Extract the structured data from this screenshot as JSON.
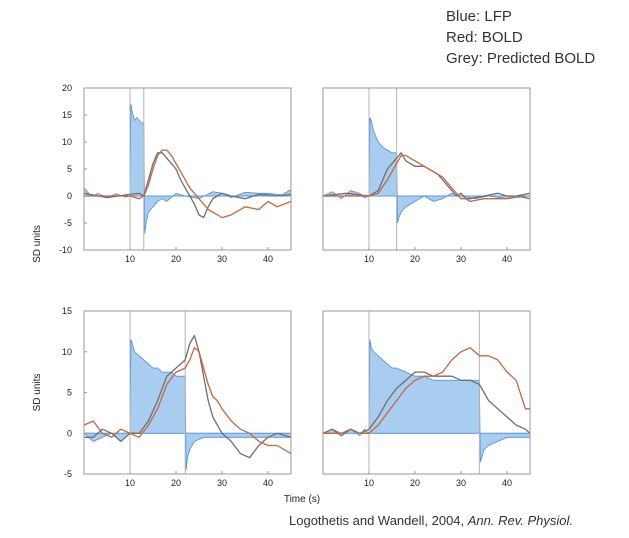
{
  "legend": {
    "blue": "Blue: LFP",
    "red": "Red: BOLD",
    "grey": "Grey: Predicted BOLD"
  },
  "citation": {
    "authors": "Logothetis and Wandell, 2004, ",
    "journal": "Ann. Rev. Physiol."
  },
  "colors": {
    "lfp_fill": "#a9cdf0",
    "lfp_line": "#4a90d9",
    "bold": "#c8663a",
    "predicted": "#6f6f6f",
    "frame": "#9a9a9a",
    "marker": "#b4b4b4"
  },
  "chart_data": [
    {
      "type": "area",
      "panel": "top-left",
      "xlabel": "",
      "ylabel": "SD units",
      "xlim": [
        0,
        45
      ],
      "ylim": [
        -10,
        20
      ],
      "xticks": [
        10,
        20,
        30,
        40
      ],
      "yticks": [
        -10,
        -5,
        0,
        5,
        10,
        15,
        20
      ],
      "stimulus": [
        10,
        13
      ],
      "series": [
        {
          "key": "lfp",
          "x": [
            0,
            1,
            2,
            3,
            5,
            7,
            9,
            10,
            10.2,
            10.5,
            11,
            11.5,
            12,
            12.5,
            13,
            13.2,
            13.5,
            14,
            15,
            16,
            17,
            18,
            20,
            22,
            25,
            28,
            30,
            32,
            35,
            38,
            40,
            43,
            45
          ],
          "values": [
            1.5,
            0.5,
            0,
            0.5,
            -0.3,
            0.4,
            -0.2,
            0,
            17,
            15.5,
            14,
            14.5,
            14,
            13.5,
            13.5,
            -7,
            -5,
            -3,
            -2,
            -1,
            -0.5,
            -1,
            0.5,
            0,
            -0.5,
            0.8,
            0.5,
            -0.3,
            0.7,
            0.5,
            0.5,
            0.2,
            1.2
          ]
        },
        {
          "key": "bold",
          "x": [
            0,
            5,
            10,
            12,
            13,
            14,
            15,
            16,
            17,
            18,
            19,
            20,
            21,
            22,
            23,
            24,
            25,
            26,
            27,
            28,
            30,
            32,
            35,
            38,
            40,
            42,
            45
          ],
          "values": [
            0,
            0,
            0,
            -0.5,
            0,
            2,
            5,
            7.5,
            8.5,
            8.5,
            7.5,
            6,
            4.5,
            3,
            1.5,
            0.5,
            -0.5,
            -1.5,
            -2.5,
            -3,
            -4,
            -3.5,
            -2,
            -2.5,
            -1,
            -2,
            -1
          ]
        },
        {
          "key": "predicted",
          "x": [
            0,
            5,
            10,
            12,
            13,
            14,
            15,
            16,
            17,
            18,
            19,
            20,
            21,
            22,
            23,
            24,
            25,
            26,
            27,
            28,
            30,
            32,
            35,
            38,
            40,
            42,
            45
          ],
          "values": [
            0.5,
            -0.3,
            0.3,
            0.5,
            0,
            3,
            6,
            8,
            8,
            7,
            6,
            5,
            3,
            1.5,
            0,
            -1.5,
            -3.5,
            -4,
            -2,
            -0.5,
            0.5,
            0,
            -0.5,
            0.3,
            0.2,
            0,
            0.3
          ]
        }
      ]
    },
    {
      "type": "area",
      "panel": "top-right",
      "xlabel": "",
      "ylabel": "",
      "xlim": [
        0,
        45
      ],
      "ylim": [
        -10,
        20
      ],
      "xticks": [
        10,
        20,
        30,
        40
      ],
      "yticks": [],
      "stimulus": [
        10,
        16
      ],
      "series": [
        {
          "key": "lfp",
          "x": [
            0,
            2,
            4,
            6,
            8,
            9,
            10,
            10.2,
            10.5,
            11,
            12,
            13,
            14,
            15,
            16,
            16.2,
            16.5,
            17,
            18,
            19,
            20,
            21,
            22,
            24,
            26,
            28,
            30,
            33,
            36,
            40,
            45
          ],
          "values": [
            0,
            0.8,
            -0.5,
            1,
            0.5,
            -0.3,
            0,
            14.5,
            14,
            12,
            10,
            9,
            8.5,
            8,
            8,
            -5,
            -4,
            -3,
            -2,
            -1.5,
            -1,
            -0.5,
            0,
            -1,
            -0.5,
            0.5,
            0,
            -0.5,
            0,
            -0.5,
            0
          ]
        },
        {
          "key": "bold",
          "x": [
            0,
            5,
            10,
            12,
            14,
            16,
            17,
            18,
            19,
            20,
            21,
            22,
            23,
            24,
            25,
            26,
            27,
            28,
            29,
            30,
            31,
            32,
            35,
            38,
            40,
            42,
            45
          ],
          "values": [
            0,
            0,
            0,
            0.5,
            3,
            6,
            7.5,
            7.5,
            7,
            6.5,
            6,
            5.5,
            5,
            4.5,
            4,
            3.5,
            2.5,
            1.5,
            0.5,
            -0.5,
            -0.5,
            -1,
            -0.5,
            -0.5,
            -0.5,
            0,
            -0.5
          ]
        },
        {
          "key": "predicted",
          "x": [
            0,
            5,
            10,
            12,
            14,
            16,
            17,
            18,
            19,
            20,
            21,
            22,
            23,
            24,
            25,
            26,
            27,
            28,
            29,
            30,
            31,
            32,
            35,
            38,
            40,
            42,
            45
          ],
          "values": [
            0,
            0.5,
            0,
            1,
            5,
            7,
            8,
            6.5,
            6,
            5.5,
            5.5,
            5.5,
            5,
            4.5,
            4,
            3,
            2,
            1,
            0,
            0.5,
            -0.5,
            -0.5,
            0,
            0.5,
            0,
            0,
            0.5
          ]
        }
      ]
    },
    {
      "type": "area",
      "panel": "bottom-left",
      "xlabel": "",
      "ylabel": "SD units",
      "xlim": [
        0,
        45
      ],
      "ylim": [
        -5,
        15
      ],
      "xticks": [
        10,
        20,
        30,
        40
      ],
      "yticks": [
        -5,
        0,
        5,
        10,
        15
      ],
      "stimulus": [
        10,
        22
      ],
      "series": [
        {
          "key": "lfp",
          "x": [
            0,
            2,
            4,
            6,
            8,
            9,
            10,
            10.2,
            10.5,
            11,
            12,
            13,
            14,
            15,
            16,
            17,
            18,
            19,
            20,
            21,
            22,
            22.2,
            22.5,
            23,
            24,
            26,
            28,
            30,
            33,
            36,
            40,
            45
          ],
          "values": [
            0,
            -1,
            -0.5,
            0,
            -1,
            -0.5,
            0,
            11.5,
            11,
            10,
            9.5,
            9,
            8.5,
            8,
            8,
            7.5,
            7.5,
            7.5,
            7,
            7,
            7,
            -4.5,
            -3,
            -2,
            -1,
            -0.5,
            -0.5,
            -0.5,
            -0.5,
            -0.5,
            -0.5,
            -0.5
          ]
        },
        {
          "key": "bold",
          "x": [
            0,
            2,
            4,
            6,
            8,
            10,
            12,
            14,
            16,
            18,
            20,
            22,
            23,
            24,
            25,
            26,
            27,
            28,
            29,
            30,
            32,
            34,
            36,
            38,
            40,
            42,
            45
          ],
          "values": [
            1,
            1.5,
            0,
            -0.5,
            0.5,
            0,
            -0.5,
            1,
            3,
            6,
            7.5,
            8,
            9,
            10.5,
            10,
            8,
            6,
            4.5,
            4,
            3,
            1.5,
            0.5,
            0,
            -1,
            -1.5,
            -1.5,
            -2.5
          ]
        },
        {
          "key": "predicted",
          "x": [
            0,
            2,
            4,
            6,
            8,
            10,
            12,
            14,
            16,
            18,
            20,
            22,
            23,
            24,
            25,
            26,
            27,
            28,
            29,
            30,
            32,
            34,
            36,
            38,
            40,
            42,
            45
          ],
          "values": [
            -0.5,
            -0.5,
            0.5,
            0,
            -1,
            0,
            0,
            1.5,
            4,
            7,
            8,
            9,
            11,
            12,
            10,
            7,
            4,
            2,
            1,
            0,
            -1,
            -2.5,
            -3,
            -1.5,
            -0.5,
            0,
            -0.5
          ]
        }
      ]
    },
    {
      "type": "area",
      "panel": "bottom-right",
      "xlabel": "Time  (s)",
      "ylabel": "",
      "xlim": [
        0,
        45
      ],
      "ylim": [
        -5,
        15
      ],
      "xticks": [
        10,
        20,
        30,
        40
      ],
      "yticks": [],
      "stimulus": [
        10,
        34
      ],
      "series": [
        {
          "key": "lfp",
          "x": [
            0,
            2,
            4,
            6,
            8,
            9,
            10,
            10.2,
            10.5,
            11,
            12,
            13,
            14,
            15,
            16,
            18,
            20,
            22,
            24,
            26,
            28,
            30,
            32,
            33,
            34,
            34.2,
            34.5,
            35,
            36,
            38,
            40,
            43,
            45
          ],
          "values": [
            0,
            0.5,
            0,
            0.5,
            -0.3,
            0.5,
            0,
            11.5,
            10.5,
            10,
            9.5,
            9,
            8.5,
            8,
            8,
            7.5,
            7,
            7,
            6.5,
            6.5,
            6.5,
            6.5,
            6.5,
            6.5,
            6.5,
            -3.5,
            -3,
            -2,
            -1.5,
            -1,
            -0.5,
            -0.5,
            -0.5
          ]
        },
        {
          "key": "bold",
          "x": [
            0,
            2,
            4,
            6,
            8,
            10,
            12,
            14,
            16,
            18,
            20,
            22,
            24,
            26,
            28,
            30,
            32,
            34,
            36,
            38,
            40,
            42,
            44,
            45
          ],
          "values": [
            0,
            0,
            0,
            0.5,
            0,
            0,
            1,
            2.5,
            4,
            5.5,
            6.5,
            7,
            7,
            7.5,
            9,
            10,
            10.5,
            9.5,
            9.5,
            9,
            7.5,
            6.5,
            3,
            3
          ]
        },
        {
          "key": "predicted",
          "x": [
            0,
            2,
            4,
            6,
            8,
            10,
            12,
            14,
            16,
            18,
            20,
            22,
            24,
            26,
            28,
            30,
            32,
            34,
            35,
            36,
            38,
            40,
            42,
            44,
            45
          ],
          "values": [
            0,
            0.5,
            -0.3,
            0.5,
            0,
            0.5,
            2,
            4,
            5.5,
            6.5,
            7.5,
            7.5,
            7,
            7,
            7,
            6.5,
            6.5,
            6,
            5,
            4,
            3,
            2,
            1,
            0.5,
            0
          ]
        }
      ]
    }
  ]
}
